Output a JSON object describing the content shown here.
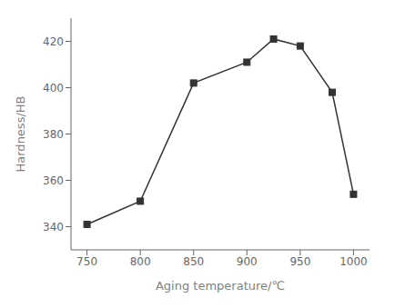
{
  "chart_data": {
    "type": "line",
    "x": [
      750,
      800,
      850,
      900,
      925,
      950,
      980,
      1000
    ],
    "values": [
      341,
      351,
      402,
      411,
      421,
      418,
      398,
      354
    ],
    "xlabel": "Aging temperature/℃",
    "ylabel": "Hardness/HB",
    "xlim": [
      735,
      1015
    ],
    "ylim": [
      330,
      430
    ],
    "xticks": [
      750,
      800,
      850,
      900,
      950,
      1000
    ],
    "yticks": [
      340,
      360,
      380,
      400,
      420
    ],
    "color": "#333333",
    "marker": "square",
    "grid": false
  }
}
